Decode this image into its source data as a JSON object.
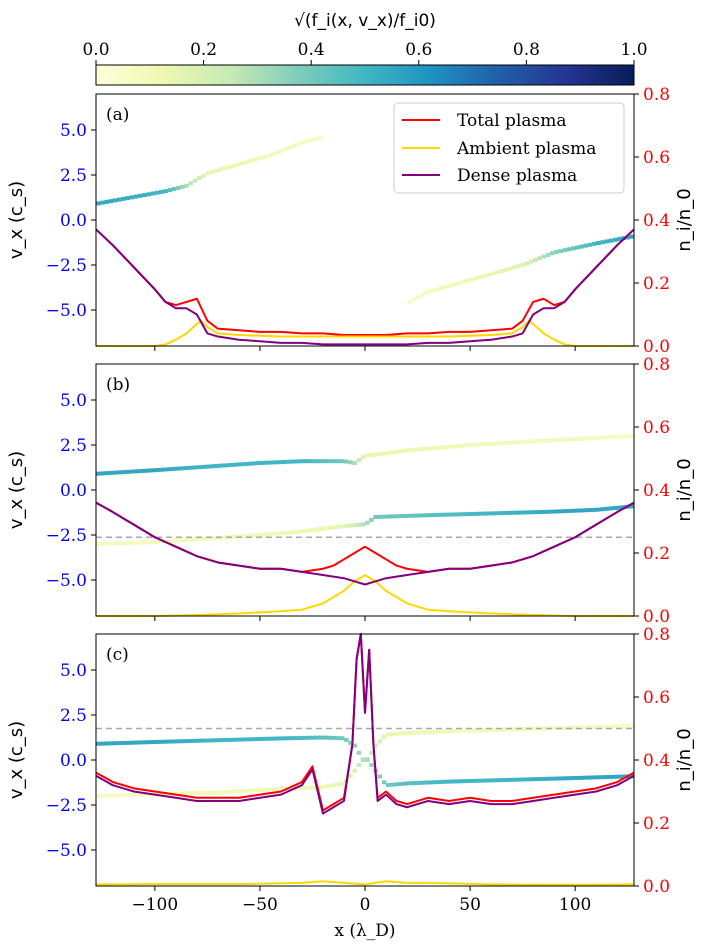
{
  "colorbar": {
    "label": "√(f_i(x, v_x)/f_i0)",
    "ticks": [
      "0.0",
      "0.2",
      "0.4",
      "0.6",
      "0.8",
      "1.0"
    ],
    "range": [
      0,
      1
    ],
    "colormap": "YlGnBu",
    "stops": [
      "#ffffd9",
      "#edf8b1",
      "#c7e9b4",
      "#7fcdbb",
      "#41b6c4",
      "#1d91c0",
      "#225ea8",
      "#253494",
      "#081d58"
    ]
  },
  "colors": {
    "total": "#ff0000",
    "ambient": "#ffd700",
    "dense": "#800080",
    "left_axis": "#0000ff",
    "right_axis": "#ff0000",
    "dashed": "#a9a9a9"
  },
  "legend": [
    "Total plasma",
    "Ambient plasma",
    "Dense plasma"
  ],
  "x_axis": {
    "label": "x (λ_D)",
    "ticks": [
      -100,
      -50,
      0,
      50,
      100
    ],
    "tick_labels": [
      "−100",
      "−50",
      "0",
      "50",
      "100"
    ],
    "range": [
      -128,
      128
    ]
  },
  "left_axis": {
    "label": "v_x (c_s)",
    "ticks": [
      5.0,
      2.5,
      0.0,
      -2.5,
      -5.0
    ],
    "tick_labels": [
      "5.0",
      "2.5",
      "0.0",
      "−2.5",
      "−5.0"
    ],
    "range": [
      -7,
      7
    ]
  },
  "right_axis": {
    "label": "n_i/n_0",
    "ticks": [
      0.0,
      0.2,
      0.4,
      0.6,
      0.8
    ],
    "tick_labels": [
      "0.0",
      "0.2",
      "0.4",
      "0.6",
      "0.8"
    ],
    "range": [
      0,
      0.8
    ]
  },
  "chart_data": [
    {
      "type": "line",
      "panel_label": "(a)",
      "dashed_line_density": null,
      "series": [
        {
          "name": "Total plasma",
          "x": [
            -128,
            -120,
            -110,
            -100,
            -95,
            -90,
            -85,
            -80,
            -75,
            -70,
            -60,
            -50,
            -40,
            -30,
            -20,
            -10,
            0,
            10,
            20,
            30,
            40,
            50,
            60,
            70,
            75,
            80,
            85,
            90,
            95,
            100,
            110,
            120,
            128
          ],
          "values": [
            0.37,
            0.32,
            0.25,
            0.18,
            0.14,
            0.13,
            0.14,
            0.15,
            0.08,
            0.055,
            0.05,
            0.045,
            0.045,
            0.04,
            0.04,
            0.035,
            0.035,
            0.035,
            0.04,
            0.04,
            0.045,
            0.045,
            0.05,
            0.055,
            0.08,
            0.14,
            0.15,
            0.13,
            0.14,
            0.18,
            0.25,
            0.32,
            0.37
          ]
        },
        {
          "name": "Ambient plasma",
          "x": [
            -128,
            -110,
            -100,
            -95,
            -90,
            -85,
            -80,
            -78,
            -75,
            -70,
            -60,
            -40,
            -20,
            0,
            20,
            40,
            60,
            70,
            75,
            78,
            80,
            85,
            90,
            95,
            100,
            110,
            128
          ],
          "values": [
            0,
            0,
            0,
            0.005,
            0.02,
            0.04,
            0.07,
            0.08,
            0.06,
            0.04,
            0.035,
            0.03,
            0.03,
            0.03,
            0.03,
            0.03,
            0.035,
            0.04,
            0.06,
            0.08,
            0.07,
            0.04,
            0.02,
            0.005,
            0,
            0,
            0
          ]
        },
        {
          "name": "Dense plasma",
          "x": [
            -128,
            -120,
            -110,
            -100,
            -95,
            -90,
            -85,
            -80,
            -75,
            -70,
            -60,
            -50,
            -40,
            -30,
            -20,
            -10,
            0,
            10,
            20,
            30,
            40,
            50,
            60,
            70,
            75,
            80,
            85,
            90,
            95,
            100,
            110,
            120,
            128
          ],
          "values": [
            0.37,
            0.32,
            0.25,
            0.18,
            0.14,
            0.12,
            0.12,
            0.1,
            0.04,
            0.03,
            0.02,
            0.015,
            0.01,
            0.01,
            0.005,
            0.005,
            0.005,
            0.005,
            0.005,
            0.01,
            0.01,
            0.015,
            0.02,
            0.03,
            0.04,
            0.1,
            0.12,
            0.12,
            0.14,
            0.18,
            0.25,
            0.32,
            0.37
          ]
        }
      ],
      "phase_space": [
        {
          "x": [
            -128,
            -95,
            -85,
            -75,
            -60,
            -45,
            -30,
            -20
          ],
          "v": [
            0.9,
            1.6,
            1.9,
            2.6,
            3.1,
            3.6,
            4.3,
            4.6
          ],
          "levels": [
            0.55,
            0.5,
            0.3,
            0.15,
            0.12,
            0.1,
            0.08,
            0.06
          ]
        },
        {
          "x": [
            20,
            30,
            45,
            60,
            75,
            90,
            110,
            128
          ],
          "v": [
            -4.6,
            -4.0,
            -3.5,
            -3.0,
            -2.5,
            -1.8,
            -1.3,
            -0.9
          ],
          "levels": [
            0.06,
            0.08,
            0.1,
            0.13,
            0.18,
            0.35,
            0.5,
            0.55
          ]
        }
      ]
    },
    {
      "type": "line",
      "panel_label": "(b)",
      "dashed_line_density": 0.25,
      "series": [
        {
          "name": "Total plasma",
          "x": [
            -128,
            -120,
            -110,
            -100,
            -90,
            -80,
            -70,
            -60,
            -50,
            -40,
            -30,
            -20,
            -15,
            -10,
            -5,
            0,
            5,
            10,
            15,
            20,
            30,
            40,
            50,
            60,
            70,
            80,
            90,
            100,
            110,
            120,
            128
          ],
          "values": [
            0.36,
            0.33,
            0.29,
            0.25,
            0.22,
            0.19,
            0.17,
            0.16,
            0.15,
            0.15,
            0.14,
            0.15,
            0.16,
            0.18,
            0.2,
            0.22,
            0.2,
            0.18,
            0.16,
            0.15,
            0.14,
            0.15,
            0.15,
            0.16,
            0.17,
            0.19,
            0.22,
            0.25,
            0.29,
            0.33,
            0.36
          ]
        },
        {
          "name": "Ambient plasma",
          "x": [
            -128,
            -100,
            -80,
            -60,
            -40,
            -30,
            -20,
            -10,
            -5,
            0,
            5,
            10,
            20,
            30,
            40,
            60,
            80,
            100,
            128
          ],
          "values": [
            0,
            0,
            0.003,
            0.008,
            0.015,
            0.02,
            0.04,
            0.08,
            0.11,
            0.13,
            0.11,
            0.08,
            0.04,
            0.02,
            0.015,
            0.008,
            0.003,
            0,
            0
          ]
        },
        {
          "name": "Dense plasma",
          "x": [
            -128,
            -120,
            -110,
            -100,
            -90,
            -80,
            -70,
            -60,
            -50,
            -40,
            -30,
            -20,
            -15,
            -10,
            -5,
            0,
            5,
            10,
            15,
            20,
            30,
            40,
            50,
            60,
            70,
            80,
            90,
            100,
            110,
            120,
            128
          ],
          "values": [
            0.36,
            0.33,
            0.29,
            0.25,
            0.22,
            0.19,
            0.17,
            0.16,
            0.15,
            0.15,
            0.14,
            0.13,
            0.125,
            0.12,
            0.11,
            0.1,
            0.11,
            0.12,
            0.125,
            0.13,
            0.14,
            0.15,
            0.15,
            0.16,
            0.17,
            0.19,
            0.22,
            0.25,
            0.29,
            0.33,
            0.36
          ]
        }
      ],
      "phase_space": [
        {
          "x": [
            -128,
            -100,
            -75,
            -50,
            -30,
            -10,
            -5,
            0,
            20,
            50,
            80,
            110,
            128
          ],
          "v": [
            0.9,
            1.1,
            1.3,
            1.5,
            1.6,
            1.6,
            1.5,
            1.9,
            2.2,
            2.5,
            2.7,
            2.9,
            3.0
          ],
          "levels": [
            0.55,
            0.55,
            0.5,
            0.5,
            0.5,
            0.4,
            0.3,
            0.15,
            0.12,
            0.1,
            0.09,
            0.08,
            0.07
          ]
        },
        {
          "x": [
            -128,
            -100,
            -75,
            -50,
            -30,
            -10,
            0,
            5,
            30,
            60,
            90,
            110,
            128
          ],
          "v": [
            -3.0,
            -2.9,
            -2.7,
            -2.5,
            -2.3,
            -2.0,
            -1.9,
            -1.5,
            -1.4,
            -1.3,
            -1.2,
            -1.1,
            -0.9
          ],
          "levels": [
            0.07,
            0.08,
            0.09,
            0.1,
            0.12,
            0.15,
            0.3,
            0.4,
            0.45,
            0.5,
            0.55,
            0.55,
            0.55
          ]
        }
      ]
    },
    {
      "type": "line",
      "panel_label": "(c)",
      "dashed_line_density": 0.5,
      "series": [
        {
          "name": "Total plasma",
          "x": [
            -128,
            -120,
            -110,
            -100,
            -90,
            -80,
            -70,
            -60,
            -50,
            -40,
            -30,
            -25,
            -20,
            -15,
            -10,
            -6,
            -4,
            -2,
            0,
            2,
            4,
            6,
            10,
            15,
            20,
            30,
            40,
            50,
            60,
            70,
            80,
            90,
            100,
            110,
            120,
            128
          ],
          "values": [
            0.36,
            0.33,
            0.31,
            0.3,
            0.29,
            0.28,
            0.28,
            0.28,
            0.29,
            0.3,
            0.33,
            0.38,
            0.24,
            0.26,
            0.28,
            0.45,
            0.72,
            0.8,
            0.55,
            0.75,
            0.45,
            0.28,
            0.3,
            0.27,
            0.26,
            0.28,
            0.27,
            0.28,
            0.27,
            0.27,
            0.28,
            0.29,
            0.3,
            0.31,
            0.33,
            0.36
          ]
        },
        {
          "name": "Ambient plasma",
          "x": [
            -128,
            -100,
            -60,
            -30,
            -20,
            -10,
            0,
            10,
            20,
            30,
            60,
            100,
            128
          ],
          "values": [
            0.005,
            0.006,
            0.006,
            0.01,
            0.015,
            0.01,
            0.005,
            0.015,
            0.01,
            0.01,
            0.005,
            0.004,
            0.005
          ]
        },
        {
          "name": "Dense plasma",
          "x": [
            -128,
            -120,
            -110,
            -100,
            -90,
            -80,
            -70,
            -60,
            -50,
            -40,
            -30,
            -25,
            -20,
            -15,
            -10,
            -6,
            -4,
            -2,
            0,
            2,
            4,
            6,
            10,
            15,
            20,
            30,
            40,
            50,
            60,
            70,
            80,
            90,
            100,
            110,
            120,
            128
          ],
          "values": [
            0.35,
            0.32,
            0.3,
            0.29,
            0.28,
            0.27,
            0.27,
            0.27,
            0.28,
            0.29,
            0.32,
            0.37,
            0.23,
            0.25,
            0.27,
            0.45,
            0.72,
            0.8,
            0.55,
            0.75,
            0.45,
            0.27,
            0.29,
            0.26,
            0.25,
            0.27,
            0.26,
            0.27,
            0.26,
            0.26,
            0.27,
            0.28,
            0.29,
            0.3,
            0.32,
            0.35
          ]
        }
      ],
      "phase_space": [
        {
          "x": [
            -128,
            -100,
            -70,
            -40,
            -20,
            -10,
            -5,
            0,
            5,
            10,
            20,
            40,
            70,
            100,
            128
          ],
          "v": [
            0.9,
            1.0,
            1.1,
            1.2,
            1.25,
            1.2,
            0.8,
            -0.2,
            0.8,
            1.4,
            1.5,
            1.6,
            1.7,
            1.8,
            1.9
          ],
          "levels": [
            0.55,
            0.55,
            0.5,
            0.5,
            0.45,
            0.4,
            0.35,
            0.3,
            0.2,
            0.15,
            0.12,
            0.1,
            0.1,
            0.08,
            0.07
          ]
        },
        {
          "x": [
            -128,
            -100,
            -70,
            -40,
            -20,
            -10,
            -5,
            0,
            5,
            10,
            20,
            40,
            70,
            100,
            128
          ],
          "v": [
            -2.0,
            -1.9,
            -1.8,
            -1.6,
            -1.5,
            -1.3,
            -0.6,
            0.2,
            -0.6,
            -1.4,
            -1.3,
            -1.2,
            -1.1,
            -1.0,
            -0.9
          ],
          "levels": [
            0.07,
            0.08,
            0.1,
            0.1,
            0.12,
            0.15,
            0.2,
            0.3,
            0.35,
            0.4,
            0.45,
            0.5,
            0.5,
            0.55,
            0.55
          ]
        }
      ]
    }
  ]
}
